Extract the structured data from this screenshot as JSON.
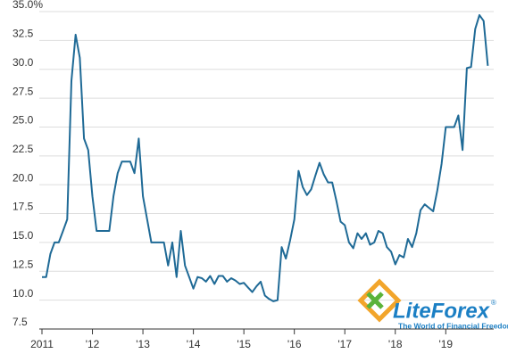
{
  "chart_data": {
    "type": "line",
    "x": [
      2011.0,
      2011.083,
      2011.167,
      2011.25,
      2011.333,
      2011.417,
      2011.5,
      2011.583,
      2011.667,
      2011.75,
      2011.833,
      2011.917,
      2012.0,
      2012.083,
      2012.167,
      2012.25,
      2012.333,
      2012.417,
      2012.5,
      2012.583,
      2012.667,
      2012.75,
      2012.833,
      2012.917,
      2013.0,
      2013.083,
      2013.167,
      2013.25,
      2013.333,
      2013.417,
      2013.5,
      2013.583,
      2013.667,
      2013.75,
      2013.833,
      2013.917,
      2014.0,
      2014.083,
      2014.167,
      2014.25,
      2014.333,
      2014.417,
      2014.5,
      2014.583,
      2014.667,
      2014.75,
      2014.833,
      2014.917,
      2015.0,
      2015.083,
      2015.167,
      2015.25,
      2015.333,
      2015.417,
      2015.5,
      2015.583,
      2015.667,
      2015.75,
      2015.833,
      2015.917,
      2016.0,
      2016.083,
      2016.167,
      2016.25,
      2016.333,
      2016.417,
      2016.5,
      2016.583,
      2016.667,
      2016.75,
      2016.833,
      2016.917,
      2017.0,
      2017.083,
      2017.167,
      2017.25,
      2017.333,
      2017.417,
      2017.5,
      2017.583,
      2017.667,
      2017.75,
      2017.833,
      2017.917,
      2018.0,
      2018.083,
      2018.167,
      2018.25,
      2018.333,
      2018.417,
      2018.5,
      2018.583,
      2018.667,
      2018.75,
      2018.833,
      2018.917,
      2019.0,
      2019.083,
      2019.167,
      2019.25,
      2019.333,
      2019.417,
      2019.5,
      2019.583,
      2019.667,
      2019.75,
      2019.833
    ],
    "series": [
      {
        "color": "#1f6a96",
        "values": [
          12.0,
          12.0,
          14,
          15,
          15,
          16,
          17,
          29,
          33,
          31,
          24,
          23,
          19,
          16,
          16,
          16,
          16,
          19,
          21,
          22,
          22,
          22,
          21,
          24,
          19,
          17,
          15,
          15,
          15,
          15,
          13,
          15,
          12,
          16,
          13,
          12,
          11,
          12,
          11.9,
          11.6,
          12.1,
          11.4,
          12.1,
          12.1,
          11.6,
          11.9,
          11.7,
          11.4,
          11.5,
          11.1,
          10.7,
          11.2,
          11.6,
          10.4,
          10.1,
          9.9,
          10.0,
          14.6,
          13.6,
          15.2,
          17.0,
          21.2,
          19.8,
          19.1,
          19.6,
          20.8,
          21.9,
          20.9,
          20.2,
          20.2,
          18.6,
          16.8,
          16.5,
          15.0,
          14.5,
          15.8,
          15.3,
          15.8,
          14.8,
          15.0,
          16.0,
          15.8,
          14.6,
          14.2,
          13.1,
          13.9,
          13.7,
          15.3,
          14.6,
          15.8,
          17.8,
          18.3,
          18.0,
          17.7,
          19.5,
          21.8,
          25.0,
          25.0,
          25.0,
          26.0,
          23.0,
          30.1,
          30.2,
          33.5,
          34.7,
          34.2,
          30.3
        ]
      }
    ],
    "xlim": [
      2011,
      2019.95
    ],
    "xticks": [
      {
        "value": 2011,
        "label": "2011"
      },
      {
        "value": 2012,
        "label": "'12"
      },
      {
        "value": 2013,
        "label": "'13"
      },
      {
        "value": 2014,
        "label": "'14"
      },
      {
        "value": 2015,
        "label": "'15"
      },
      {
        "value": 2016,
        "label": "'16"
      },
      {
        "value": 2017,
        "label": "'17"
      },
      {
        "value": 2018,
        "label": "'18"
      },
      {
        "value": 2019,
        "label": "'19"
      }
    ],
    "ylim": [
      7.5,
      35
    ],
    "yticks": [
      7.5,
      {
        "value": 10,
        "label": "10.0"
      },
      12.5,
      {
        "value": 15,
        "label": "15.0"
      },
      17.5,
      {
        "value": 20,
        "label": "20.0"
      },
      22.5,
      {
        "value": 25,
        "label": "25.0"
      },
      27.5,
      {
        "value": 30,
        "label": "30.0"
      },
      32.5,
      {
        "value": 35,
        "label": "35.0%"
      }
    ],
    "grid": true
  },
  "watermark": {
    "brand": "LiteForex",
    "registered": "®",
    "tagline": "The World of Financial Freedom"
  }
}
